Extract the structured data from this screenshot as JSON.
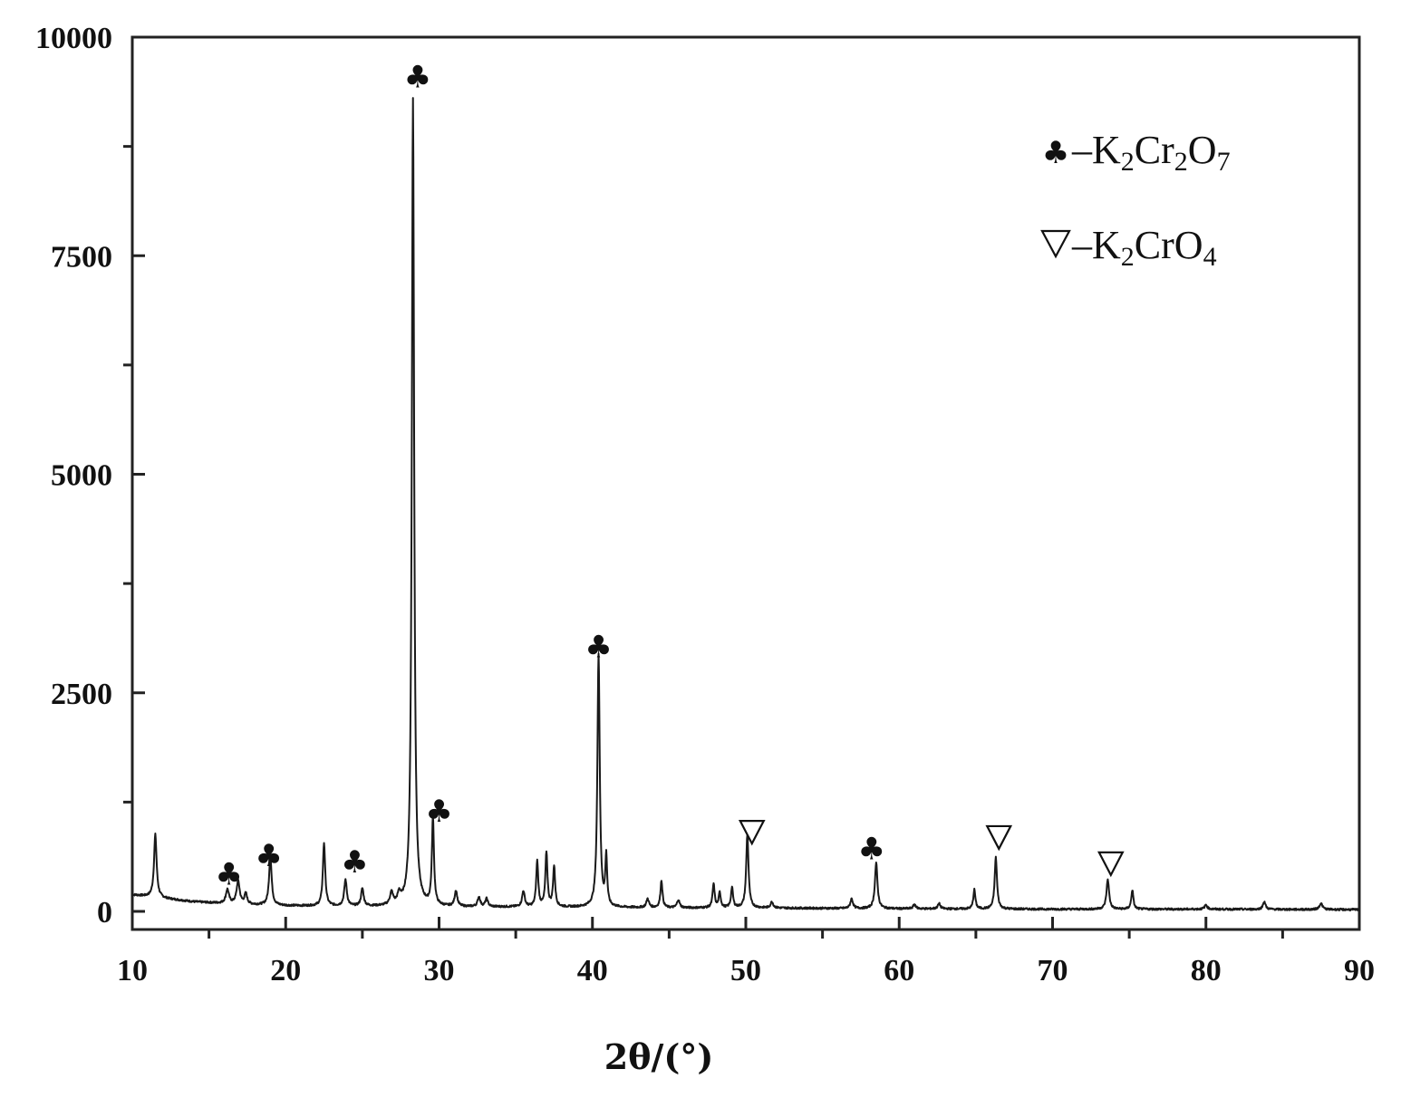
{
  "chart_data": {
    "type": "line",
    "xlabel": "2θ/(°)",
    "ylabel": "",
    "xlim": [
      10,
      90
    ],
    "ylim": [
      -200,
      10000
    ],
    "x_ticks": [
      10,
      20,
      30,
      40,
      50,
      60,
      70,
      80,
      90
    ],
    "y_ticks": [
      0,
      2500,
      5000,
      7500,
      10000
    ],
    "x_tick_labels": [
      "10",
      "20",
      "30",
      "40",
      "50",
      "60",
      "70",
      "80",
      "90"
    ],
    "y_tick_labels": [
      "0",
      "2500",
      "5000",
      "7500",
      "10000"
    ],
    "grid": false,
    "legend_position": "top-right",
    "legend": [
      {
        "symbol": "♣",
        "dash": "–",
        "base": "K",
        "sub1": "2",
        "mid": "Cr",
        "sub2": "2",
        "tail": "O",
        "sub3": "7"
      },
      {
        "symbol": "∇",
        "dash": "–",
        "base": "K",
        "sub1": "2",
        "mid": "CrO",
        "sub2": "4",
        "tail": "",
        "sub3": ""
      }
    ],
    "baseline": [
      [
        10,
        190
      ],
      [
        12,
        150
      ],
      [
        14,
        110
      ],
      [
        16,
        90
      ],
      [
        18,
        75
      ],
      [
        20,
        65
      ],
      [
        25,
        55
      ],
      [
        30,
        50
      ],
      [
        35,
        50
      ],
      [
        40,
        45
      ],
      [
        45,
        40
      ],
      [
        50,
        40
      ],
      [
        55,
        35
      ],
      [
        60,
        30
      ],
      [
        70,
        25
      ],
      [
        80,
        25
      ],
      [
        90,
        20
      ]
    ],
    "peaks": [
      {
        "x": 11.5,
        "y": 720,
        "w": 0.1
      },
      {
        "x": 16.2,
        "y": 160,
        "w": 0.12
      },
      {
        "x": 16.9,
        "y": 260,
        "w": 0.12
      },
      {
        "x": 17.4,
        "y": 120,
        "w": 0.1
      },
      {
        "x": 19.0,
        "y": 560,
        "w": 0.1
      },
      {
        "x": 22.5,
        "y": 720,
        "w": 0.09
      },
      {
        "x": 23.9,
        "y": 300,
        "w": 0.1
      },
      {
        "x": 25.0,
        "y": 200,
        "w": 0.1
      },
      {
        "x": 26.9,
        "y": 140,
        "w": 0.12
      },
      {
        "x": 27.4,
        "y": 110,
        "w": 0.12
      },
      {
        "x": 28.3,
        "y": 9250,
        "w": 0.09
      },
      {
        "x": 29.6,
        "y": 1000,
        "w": 0.08
      },
      {
        "x": 31.1,
        "y": 180,
        "w": 0.1
      },
      {
        "x": 32.6,
        "y": 110,
        "w": 0.1
      },
      {
        "x": 33.1,
        "y": 90,
        "w": 0.1
      },
      {
        "x": 35.5,
        "y": 180,
        "w": 0.1
      },
      {
        "x": 36.4,
        "y": 520,
        "w": 0.08
      },
      {
        "x": 37.0,
        "y": 620,
        "w": 0.08
      },
      {
        "x": 37.5,
        "y": 460,
        "w": 0.08
      },
      {
        "x": 40.4,
        "y": 2900,
        "w": 0.09
      },
      {
        "x": 40.9,
        "y": 560,
        "w": 0.07
      },
      {
        "x": 43.6,
        "y": 100,
        "w": 0.1
      },
      {
        "x": 44.5,
        "y": 310,
        "w": 0.08
      },
      {
        "x": 45.6,
        "y": 90,
        "w": 0.1
      },
      {
        "x": 47.9,
        "y": 270,
        "w": 0.08
      },
      {
        "x": 48.3,
        "y": 170,
        "w": 0.08
      },
      {
        "x": 49.1,
        "y": 230,
        "w": 0.08
      },
      {
        "x": 50.1,
        "y": 840,
        "w": 0.09
      },
      {
        "x": 51.7,
        "y": 70,
        "w": 0.1
      },
      {
        "x": 56.9,
        "y": 110,
        "w": 0.1
      },
      {
        "x": 58.5,
        "y": 520,
        "w": 0.1
      },
      {
        "x": 61.0,
        "y": 50,
        "w": 0.1
      },
      {
        "x": 62.6,
        "y": 60,
        "w": 0.1
      },
      {
        "x": 64.9,
        "y": 220,
        "w": 0.08
      },
      {
        "x": 66.3,
        "y": 590,
        "w": 0.09
      },
      {
        "x": 73.6,
        "y": 340,
        "w": 0.1
      },
      {
        "x": 75.2,
        "y": 220,
        "w": 0.08
      },
      {
        "x": 80.0,
        "y": 50,
        "w": 0.1
      },
      {
        "x": 83.8,
        "y": 90,
        "w": 0.1
      },
      {
        "x": 87.5,
        "y": 70,
        "w": 0.12
      }
    ],
    "annotations": [
      {
        "x": 16.3,
        "y": 430,
        "symbol": "♣"
      },
      {
        "x": 18.9,
        "y": 640,
        "symbol": "♣"
      },
      {
        "x": 24.5,
        "y": 570,
        "symbol": "♣"
      },
      {
        "x": 28.6,
        "y": 9550,
        "symbol": "♣"
      },
      {
        "x": 30.0,
        "y": 1150,
        "symbol": "♣"
      },
      {
        "x": 40.4,
        "y": 3030,
        "symbol": "♣"
      },
      {
        "x": 50.4,
        "y": 900,
        "symbol": "∇"
      },
      {
        "x": 58.2,
        "y": 720,
        "symbol": "♣"
      },
      {
        "x": 66.5,
        "y": 840,
        "symbol": "∇"
      },
      {
        "x": 73.8,
        "y": 540,
        "symbol": "∇"
      }
    ]
  }
}
